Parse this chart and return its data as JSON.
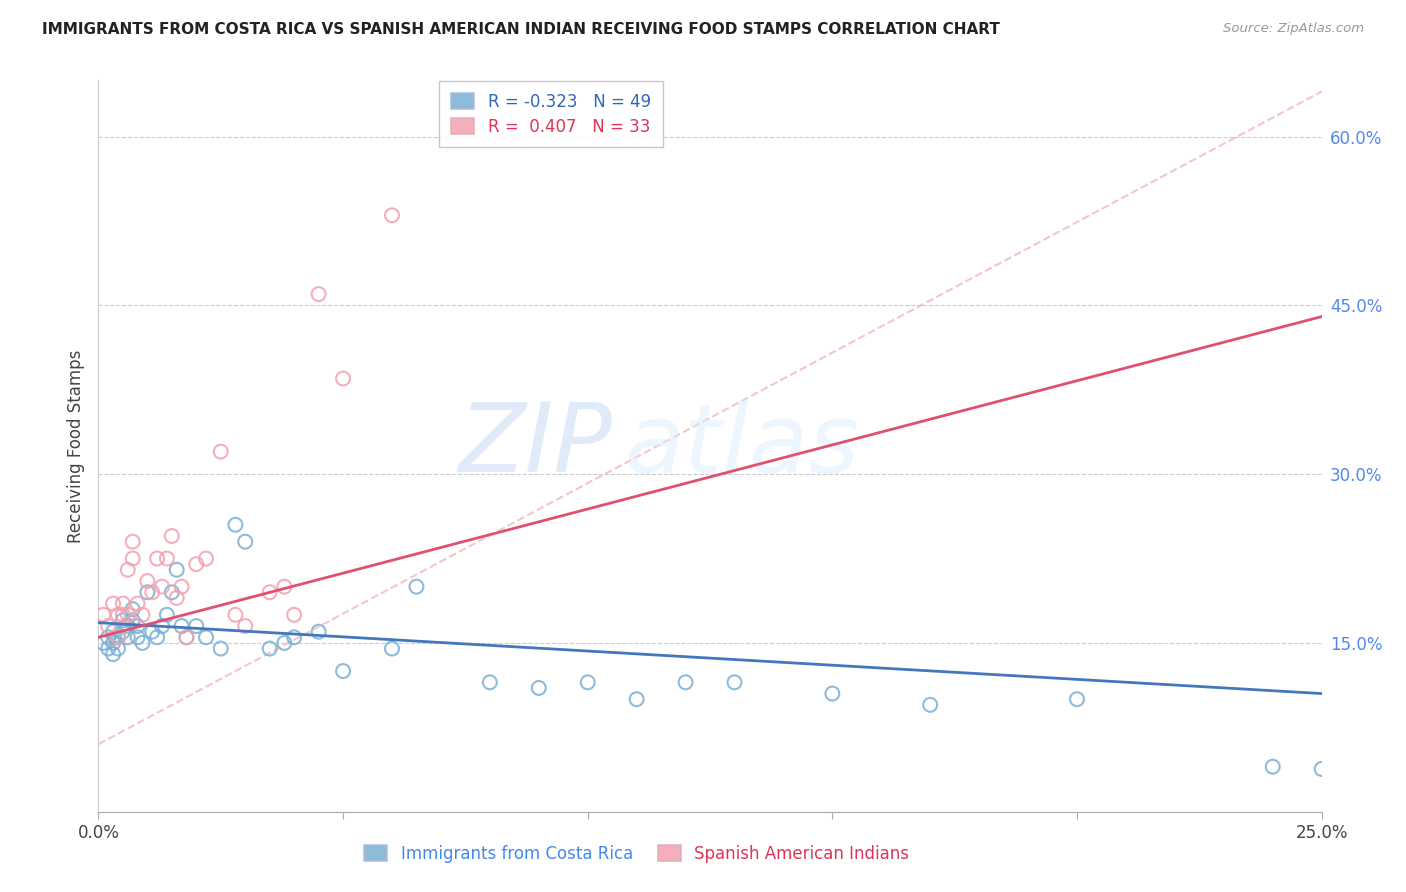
{
  "title": "IMMIGRANTS FROM COSTA RICA VS SPANISH AMERICAN INDIAN RECEIVING FOOD STAMPS CORRELATION CHART",
  "source": "Source: ZipAtlas.com",
  "ylabel": "Receiving Food Stamps",
  "watermark_zip": "ZIP",
  "watermark_atlas": "atlas",
  "xlim": [
    0.0,
    0.25
  ],
  "ylim": [
    0.0,
    0.65
  ],
  "xtick_positions": [
    0.0,
    0.05,
    0.1,
    0.15,
    0.2,
    0.25
  ],
  "xtick_labels": [
    "0.0%",
    "",
    "",
    "",
    "",
    "25.0%"
  ],
  "yticks_right": [
    0.15,
    0.3,
    0.45,
    0.6
  ],
  "ytick_labels_right": [
    "15.0%",
    "30.0%",
    "45.0%",
    "60.0%"
  ],
  "legend_line1": "R = -0.323   N = 49",
  "legend_line2": "R =  0.407   N = 33",
  "label_blue": "Immigrants from Costa Rica",
  "label_pink": "Spanish American Indians",
  "blue_color": "#7BAFD4",
  "pink_color": "#F4A0B0",
  "trend_blue_color": "#4477BB",
  "trend_pink_color": "#E05070",
  "dashed_color": "#F0B8C0",
  "blue_x": [
    0.001,
    0.002,
    0.002,
    0.003,
    0.003,
    0.003,
    0.004,
    0.004,
    0.005,
    0.005,
    0.006,
    0.006,
    0.007,
    0.007,
    0.008,
    0.008,
    0.009,
    0.01,
    0.011,
    0.012,
    0.013,
    0.014,
    0.015,
    0.016,
    0.017,
    0.018,
    0.02,
    0.022,
    0.025,
    0.028,
    0.03,
    0.035,
    0.038,
    0.04,
    0.045,
    0.05,
    0.06,
    0.065,
    0.08,
    0.09,
    0.1,
    0.11,
    0.12,
    0.13,
    0.15,
    0.17,
    0.2,
    0.24,
    0.25
  ],
  "blue_y": [
    0.15,
    0.145,
    0.155,
    0.14,
    0.15,
    0.16,
    0.145,
    0.155,
    0.16,
    0.17,
    0.155,
    0.165,
    0.17,
    0.18,
    0.155,
    0.165,
    0.15,
    0.195,
    0.16,
    0.155,
    0.165,
    0.175,
    0.195,
    0.215,
    0.165,
    0.155,
    0.165,
    0.155,
    0.145,
    0.255,
    0.24,
    0.145,
    0.15,
    0.155,
    0.16,
    0.125,
    0.145,
    0.2,
    0.115,
    0.11,
    0.115,
    0.1,
    0.115,
    0.115,
    0.105,
    0.095,
    0.1,
    0.04,
    0.038
  ],
  "pink_x": [
    0.001,
    0.002,
    0.003,
    0.004,
    0.004,
    0.005,
    0.005,
    0.006,
    0.006,
    0.007,
    0.007,
    0.008,
    0.009,
    0.01,
    0.011,
    0.012,
    0.013,
    0.014,
    0.015,
    0.016,
    0.017,
    0.018,
    0.02,
    0.022,
    0.025,
    0.028,
    0.03,
    0.035,
    0.038,
    0.04,
    0.045,
    0.05,
    0.06
  ],
  "pink_y": [
    0.175,
    0.165,
    0.185,
    0.155,
    0.175,
    0.185,
    0.175,
    0.215,
    0.175,
    0.225,
    0.24,
    0.185,
    0.175,
    0.205,
    0.195,
    0.225,
    0.2,
    0.225,
    0.245,
    0.19,
    0.2,
    0.155,
    0.22,
    0.225,
    0.32,
    0.175,
    0.165,
    0.195,
    0.2,
    0.175,
    0.46,
    0.385,
    0.53
  ],
  "blue_trend_x": [
    0.0,
    0.25
  ],
  "blue_trend_y": [
    0.168,
    0.105
  ],
  "pink_trend_x": [
    0.0,
    0.25
  ],
  "pink_trend_y": [
    0.155,
    0.44
  ],
  "dashed_trend_x": [
    0.0,
    0.25
  ],
  "dashed_trend_y": [
    0.06,
    0.64
  ]
}
